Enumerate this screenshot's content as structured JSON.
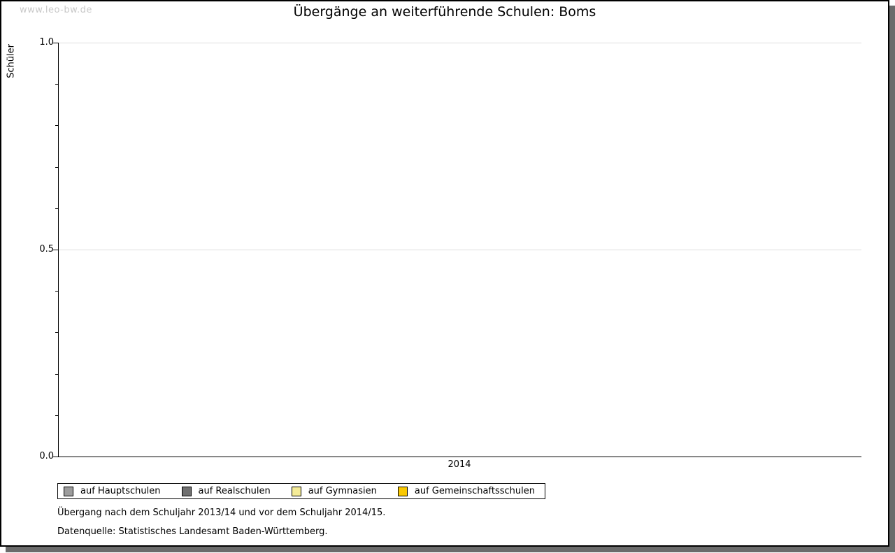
{
  "watermark": "www.leo-bw.de",
  "chart_data": {
    "type": "bar",
    "title": "Übergänge an weiterführende Schulen: Boms",
    "categories": [
      "2014"
    ],
    "series": [
      {
        "name": "auf Hauptschulen",
        "color": "#9c9c9c",
        "values": [
          0
        ]
      },
      {
        "name": "auf Realschulen",
        "color": "#6f6f6f",
        "values": [
          0
        ]
      },
      {
        "name": "auf Gymnasien",
        "color": "#f4eb97",
        "values": [
          0
        ]
      },
      {
        "name": "auf Gemeinschaftsschulen",
        "color": "#f9c802",
        "values": [
          0
        ]
      }
    ],
    "xlabel": "",
    "ylabel": "Schüler",
    "ylim": [
      0,
      1
    ],
    "yticks_major": [
      0,
      0.5,
      1
    ],
    "ytick_labels": [
      "0.0",
      "0.5",
      "1.0"
    ],
    "y_minor_step": 0.1,
    "grid": "horizontal-major",
    "legend_position": "bottom-left"
  },
  "footnotes": {
    "line1": "Übergang nach dem Schuljahr 2013/14 und vor dem Schuljahr 2014/15.",
    "line2": "Datenquelle: Statistisches Landesamt Baden-Württemberg."
  }
}
